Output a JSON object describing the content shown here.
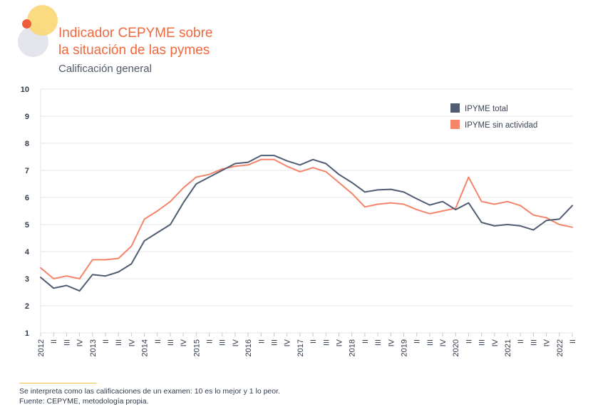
{
  "header": {
    "title_line1": "Indicador CEPYME sobre",
    "title_line2": "la situación de las pymes",
    "subtitle": "Calificación general"
  },
  "footnotes": {
    "line1": "Se interpreta como las calificaciones de un examen: 10 es lo mejor y 1 lo peor.",
    "line2": "Fuente: CEPYME, metodología propia."
  },
  "colors": {
    "total": "#4f5c72",
    "sin_actividad": "#f4846a",
    "grid": "#e6e6e6",
    "axis_text": "#2f3a4a"
  },
  "chart_data": {
    "type": "line",
    "title": "Indicador CEPYME sobre la situación de las pymes",
    "subtitle": "Calificación general",
    "xlabel": "",
    "ylabel": "",
    "ylim": [
      1,
      10
    ],
    "yticks": [
      1,
      2,
      3,
      4,
      5,
      6,
      7,
      8,
      9,
      10
    ],
    "grid": true,
    "legend_position": "top-right",
    "x": [
      "2012",
      "II",
      "III",
      "IV",
      "2013",
      "II",
      "III",
      "IV",
      "2014",
      "II",
      "III",
      "IV",
      "2015",
      "II",
      "III",
      "IV",
      "2016",
      "II",
      "III",
      "IV",
      "2017",
      "II",
      "III",
      "IV",
      "2018",
      "II",
      "III",
      "IV",
      "2019",
      "II",
      "III",
      "IV",
      "2020",
      "II",
      "III",
      "IV",
      "2021",
      "II",
      "III",
      "IV",
      "2022",
      "II"
    ],
    "series": [
      {
        "name": "IPYME total",
        "values": [
          3.05,
          2.65,
          2.75,
          2.55,
          3.15,
          3.1,
          3.25,
          3.55,
          4.4,
          4.7,
          5.0,
          5.8,
          6.5,
          6.75,
          7.0,
          7.25,
          7.3,
          7.55,
          7.55,
          7.35,
          7.2,
          7.4,
          7.25,
          6.85,
          6.55,
          6.2,
          6.28,
          6.3,
          6.2,
          5.95,
          5.72,
          5.85,
          5.55,
          5.8,
          5.08,
          4.95,
          5.0,
          4.95,
          4.8,
          5.15,
          5.2,
          5.7
        ]
      },
      {
        "name": "IPYME sin actividad",
        "values": [
          3.4,
          3.0,
          3.1,
          3.0,
          3.7,
          3.7,
          3.75,
          4.2,
          5.2,
          5.5,
          5.85,
          6.35,
          6.75,
          6.85,
          7.05,
          7.15,
          7.2,
          7.4,
          7.4,
          7.15,
          6.95,
          7.1,
          6.95,
          6.55,
          6.15,
          5.65,
          5.75,
          5.8,
          5.75,
          5.55,
          5.4,
          5.5,
          5.6,
          6.75,
          5.85,
          5.75,
          5.85,
          5.7,
          5.35,
          5.25,
          5.0,
          4.9
        ]
      }
    ]
  }
}
